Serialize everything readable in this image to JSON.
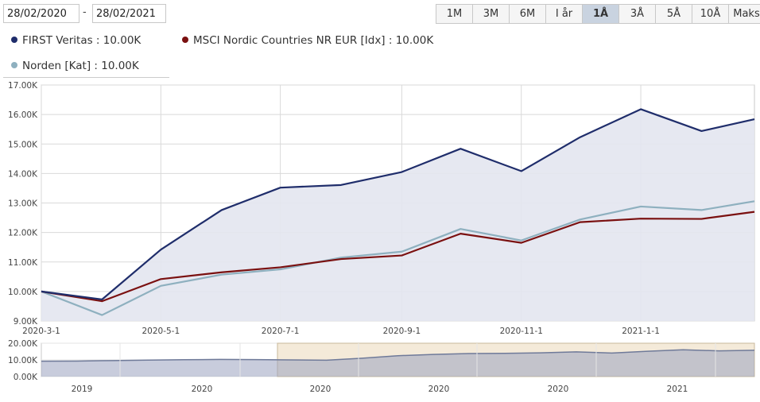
{
  "date_range": {
    "from": "28/02/2020",
    "separator": "-",
    "to": "28/02/2021"
  },
  "range_buttons": [
    {
      "label": "1M",
      "active": false
    },
    {
      "label": "3M",
      "active": false
    },
    {
      "label": "6M",
      "active": false
    },
    {
      "label": "I år",
      "active": false
    },
    {
      "label": "1Å",
      "active": true
    },
    {
      "label": "3Å",
      "active": false
    },
    {
      "label": "5Å",
      "active": false
    },
    {
      "label": "10Å",
      "active": false
    },
    {
      "label": "Maks",
      "active": false
    }
  ],
  "legend": [
    {
      "text": "FIRST Veritas : 10.00K",
      "color": "#1f2d6b"
    },
    {
      "text": "MSCI Nordic Countries NR EUR [Idx] : 10.00K",
      "color": "#7a1010"
    },
    {
      "text": "Norden [Kat] : 10.00K",
      "color": "#8eb0bf"
    }
  ],
  "chart_data": [
    {
      "type": "line",
      "x": [
        "2020-03-01",
        "2020-04-01",
        "2020-05-01",
        "2020-06-01",
        "2020-07-01",
        "2020-08-01",
        "2020-09-01",
        "2020-10-01",
        "2020-11-01",
        "2020-12-01",
        "2021-01-01",
        "2021-02-01",
        "2021-02-28"
      ],
      "x_tick_labels": [
        "2020-3-1",
        "2020-5-1",
        "2020-7-1",
        "2020-9-1",
        "2020-11-1",
        "2021-1-1"
      ],
      "y_tick_labels": [
        "9.00K",
        "10.00K",
        "11.00K",
        "12.00K",
        "13.00K",
        "14.00K",
        "15.00K",
        "16.00K",
        "17.00K"
      ],
      "ylim": [
        9000,
        17000
      ],
      "grid": true,
      "series": [
        {
          "name": "FIRST Veritas",
          "color": "#1f2d6b",
          "fill": true,
          "values": [
            10000,
            9730,
            11420,
            12760,
            13520,
            13610,
            14050,
            14840,
            14080,
            15230,
            16180,
            15440,
            15840
          ]
        },
        {
          "name": "MSCI Nordic Countries NR EUR [Idx]",
          "color": "#7a1010",
          "values": [
            10000,
            9670,
            10420,
            10650,
            10820,
            11100,
            11220,
            11960,
            11650,
            12350,
            12470,
            12460,
            12700
          ]
        },
        {
          "name": "Norden [Kat]",
          "color": "#8eb0bf",
          "values": [
            10000,
            9200,
            10190,
            10570,
            10750,
            11150,
            11350,
            12120,
            11730,
            12440,
            12880,
            12760,
            13060
          ]
        }
      ]
    },
    {
      "type": "area",
      "x_tick_labels": [
        "2019",
        "2020",
        "2020",
        "2020",
        "2020",
        "2021"
      ],
      "y_tick_labels": [
        "0.00K",
        "10.00K",
        "20.00K"
      ],
      "ylim": [
        0,
        20000
      ],
      "series": [
        {
          "name": "FIRST Veritas",
          "color": "#7f8aa6",
          "values": [
            9200,
            9300,
            9600,
            9900,
            10100,
            10300,
            10200,
            10000,
            9800,
            11000,
            12500,
            13300,
            13800,
            13900,
            14200,
            14800,
            14100,
            15200,
            16100,
            15400,
            15800
          ]
        }
      ],
      "selected_window": {
        "from": "2020-02-28",
        "to": "2021-02-28"
      }
    }
  ]
}
